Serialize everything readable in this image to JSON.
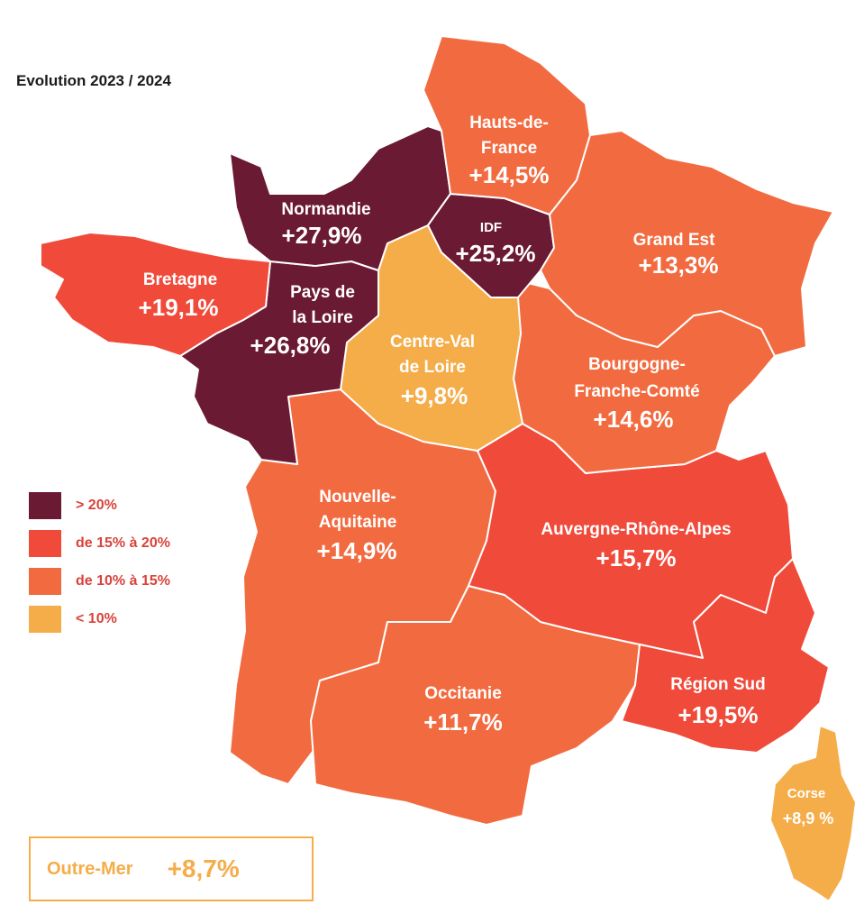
{
  "title": "Evolution 2023 / 2024",
  "colors": {
    "over_20": "#6b1a33",
    "15_to_20": "#f04a3a",
    "10_to_15": "#f26b40",
    "under_10": "#f5ad4a"
  },
  "legend": [
    {
      "label": "> 20%",
      "color": "#6b1a33"
    },
    {
      "label": "de 15% à 20%",
      "color": "#f04a3a"
    },
    {
      "label": "de 10% à 15%",
      "color": "#f26b40"
    },
    {
      "label": "< 10%",
      "color": "#f5ad4a"
    }
  ],
  "regions": {
    "hauts_de_france": {
      "name1": "Hauts-de-",
      "name2": "France",
      "value": "+14,5%"
    },
    "normandie": {
      "name": "Normandie",
      "value": "+27,9%"
    },
    "idf": {
      "name": "IDF",
      "value": "+25,2%"
    },
    "grand_est": {
      "name": "Grand Est",
      "value": "+13,3%"
    },
    "bretagne": {
      "name": "Bretagne",
      "value": "+19,1%"
    },
    "pays_de_la_loire": {
      "name1": "Pays de",
      "name2": "la Loire",
      "value": "+26,8%"
    },
    "centre_val_de_loire": {
      "name1": "Centre-Val",
      "name2": "de Loire",
      "value": "+9,8%"
    },
    "bourgogne_franche_comte": {
      "name1": "Bourgogne-",
      "name2": "Franche-Comté",
      "value": "+14,6%"
    },
    "nouvelle_aquitaine": {
      "name1": "Nouvelle-",
      "name2": "Aquitaine",
      "value": "+14,9%"
    },
    "auvergne_rhone_alpes": {
      "name": "Auvergne-Rhône-Alpes",
      "value": "+15,7%"
    },
    "occitanie": {
      "name": "Occitanie",
      "value": "+11,7%"
    },
    "region_sud": {
      "name": "Région Sud",
      "value": "+19,5%"
    },
    "corse": {
      "name": "Corse",
      "value": "+8,9 %"
    }
  },
  "outre_mer": {
    "name": "Outre-Mer",
    "value": "+8,7%"
  }
}
